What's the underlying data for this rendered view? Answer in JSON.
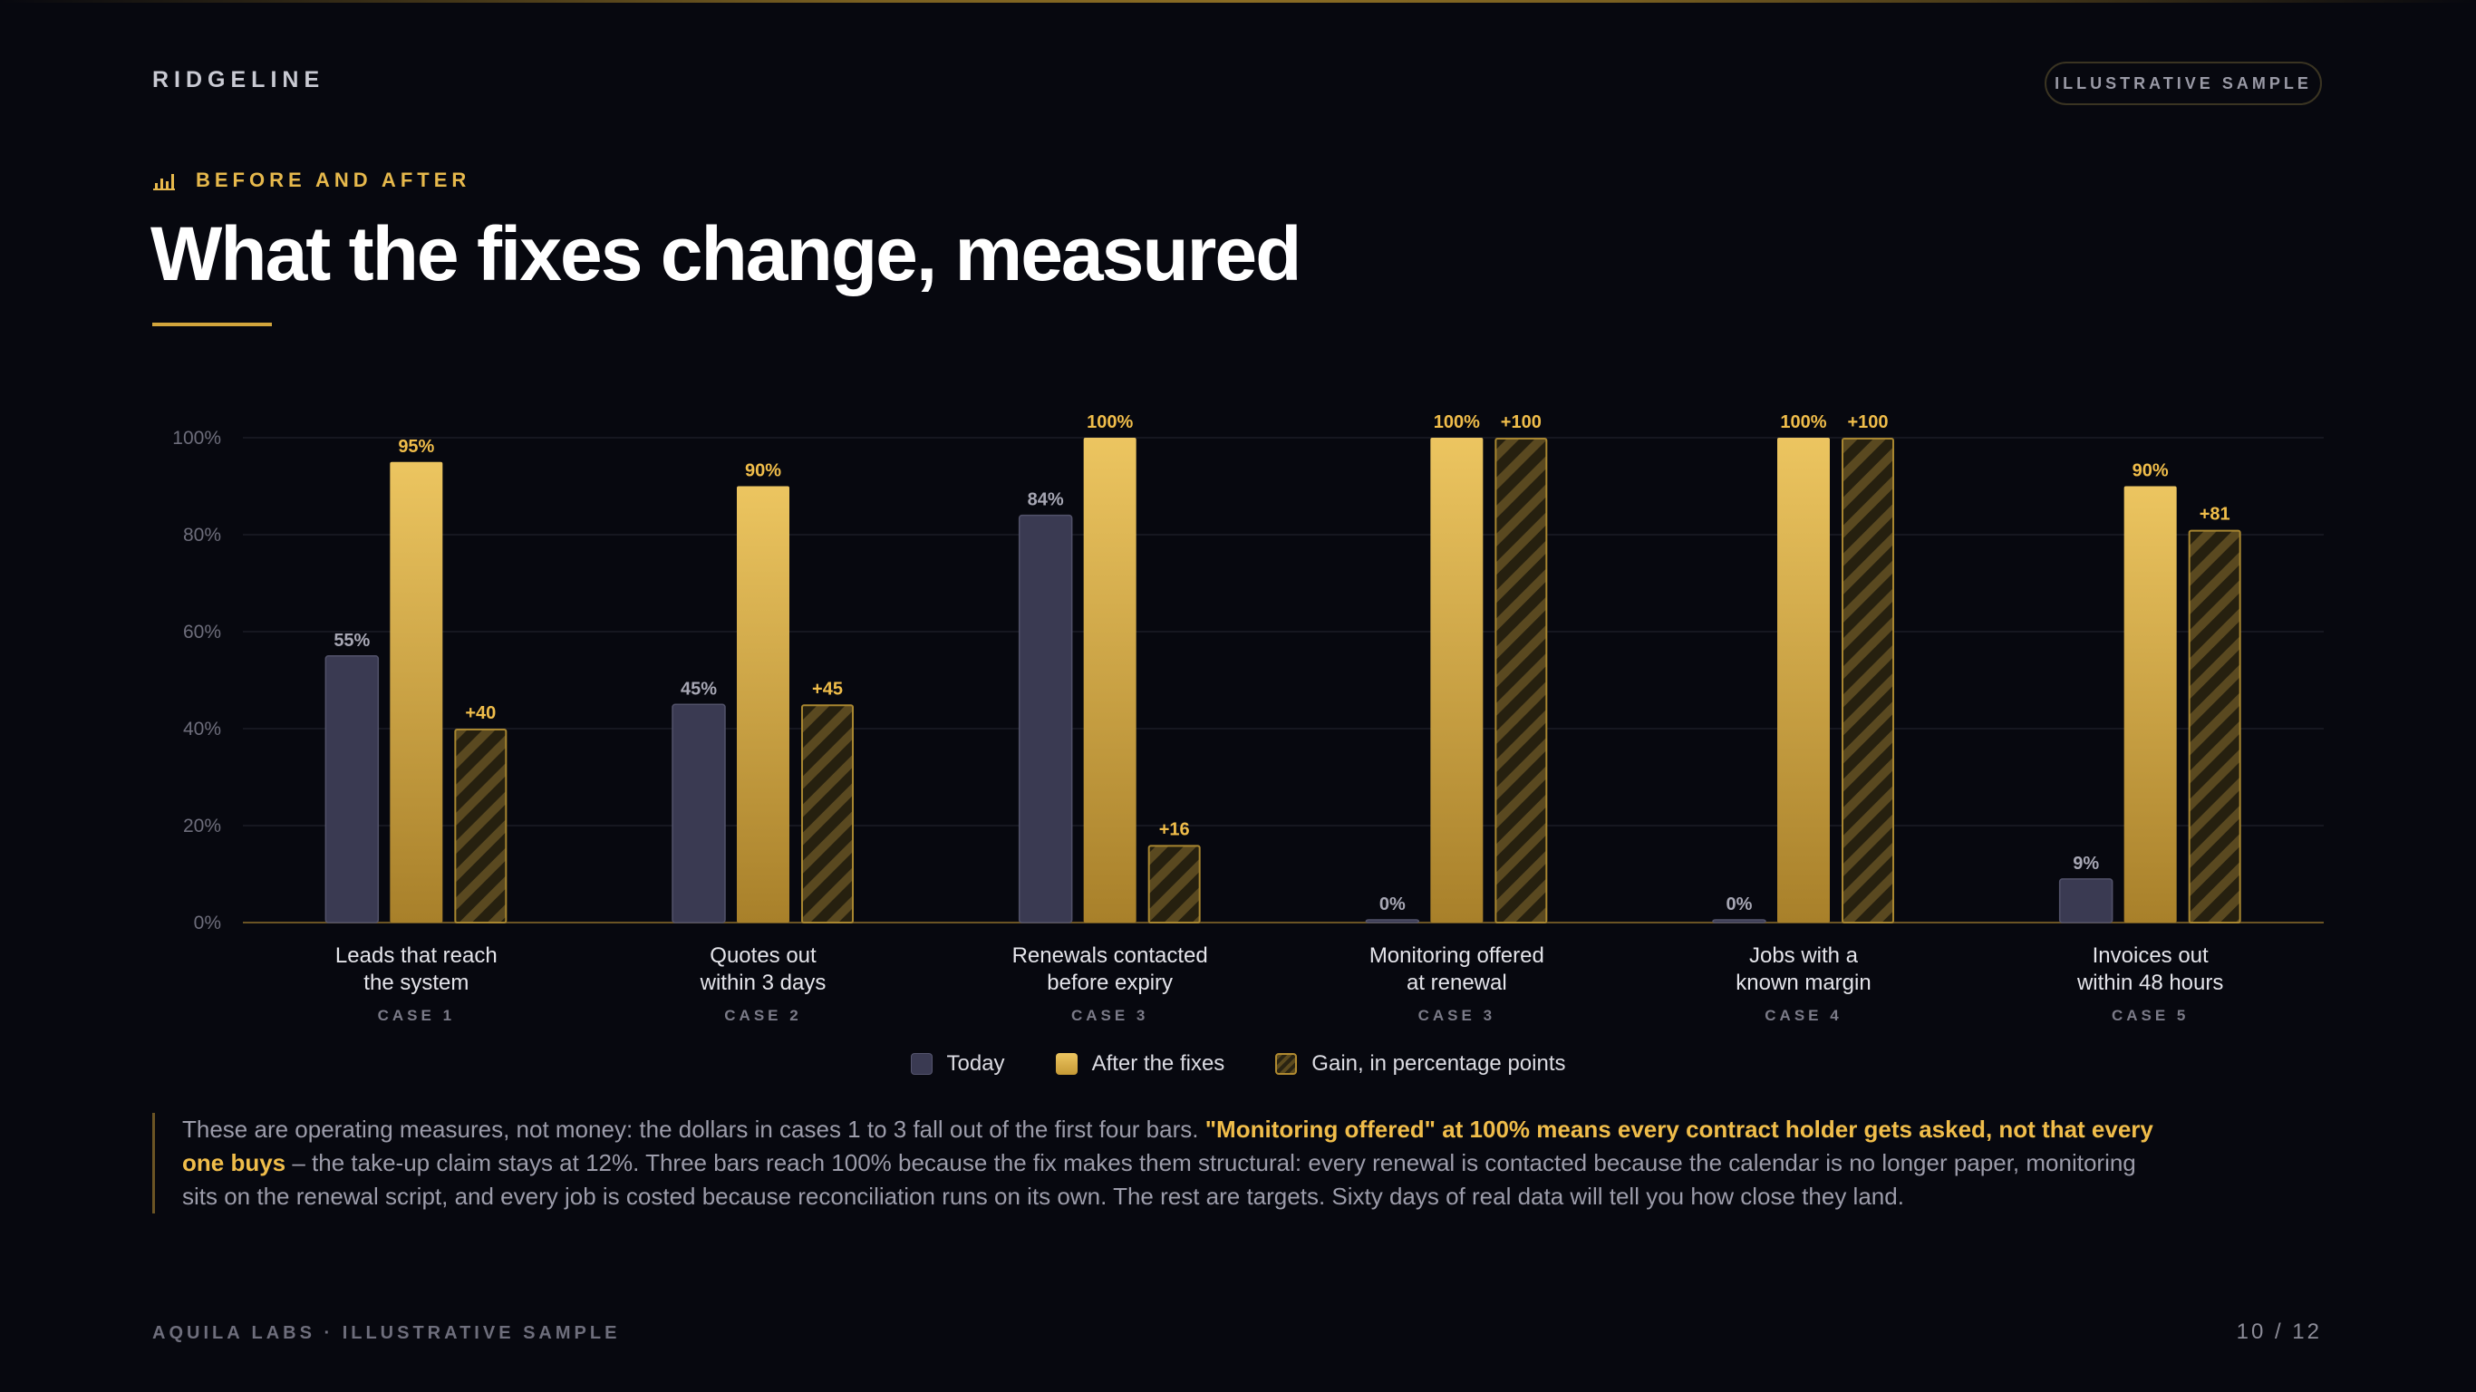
{
  "header": {
    "brand": "RIDGELINE",
    "badge": "ILLUSTRATIVE SAMPLE",
    "eyebrow": "BEFORE AND AFTER",
    "title": "What the fixes change, measured"
  },
  "chart_data": {
    "type": "bar",
    "ylim": [
      0,
      100
    ],
    "yticks": [
      "0%",
      "20%",
      "40%",
      "60%",
      "80%",
      "100%"
    ],
    "grid": true,
    "legend_placement": "bottom-center",
    "categories": [
      {
        "line1": "Leads that reach",
        "line2": "the system",
        "case": "CASE 1"
      },
      {
        "line1": "Quotes out",
        "line2": "within 3 days",
        "case": "CASE 2"
      },
      {
        "line1": "Renewals contacted",
        "line2": "before expiry",
        "case": "CASE 3"
      },
      {
        "line1": "Monitoring offered",
        "line2": "at renewal",
        "case": "CASE 3"
      },
      {
        "line1": "Jobs with a",
        "line2": "known margin",
        "case": "CASE 4"
      },
      {
        "line1": "Invoices out",
        "line2": "within 48 hours",
        "case": "CASE 5"
      }
    ],
    "series": [
      {
        "name": "Today",
        "values": [
          55,
          45,
          84,
          0,
          0,
          9
        ],
        "labels": [
          "55%",
          "45%",
          "84%",
          "0%",
          "0%",
          "9%"
        ]
      },
      {
        "name": "After the fixes",
        "values": [
          95,
          90,
          100,
          100,
          100,
          90
        ],
        "labels": [
          "95%",
          "90%",
          "100%",
          "100%",
          "100%",
          "90%"
        ]
      },
      {
        "name": "Gain, in percentage points",
        "values": [
          40,
          45,
          16,
          100,
          100,
          81
        ],
        "labels": [
          "+40",
          "+45",
          "+16",
          "+100",
          "+100",
          "+81"
        ]
      }
    ],
    "colors": {
      "today": "#3a3a52",
      "after_top": "#ecc560",
      "after_bottom": "#a8802a",
      "gain_stroke": "#a88630",
      "label_gold": "#f0bd4a",
      "label_grey": "#a7a7b4"
    }
  },
  "note": {
    "part1": "These are operating measures, not money: the dollars in cases 1 to 3 fall out of the first four bars. ",
    "highlight": "\"Monitoring offered\" at 100% means every contract holder gets asked, not that every one buys",
    "part2": " – the take-up claim stays at 12%. Three bars reach 100% because the fix makes them structural: every renewal is contacted because the calendar is no longer paper, monitoring sits on the renewal script, and every job is costed because reconciliation runs on its own. The rest are targets. Sixty days of real data will tell you how close they land."
  },
  "footer": {
    "left": "AQUILA LABS · ILLUSTRATIVE SAMPLE",
    "page": "10 / 12"
  }
}
